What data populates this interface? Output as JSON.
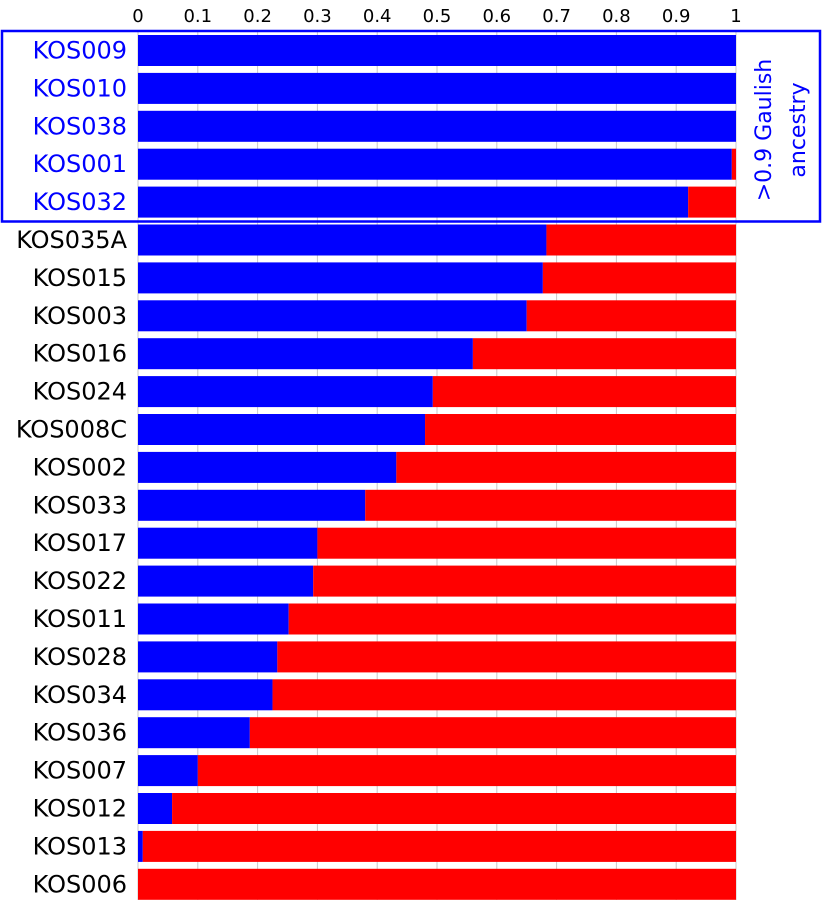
{
  "chart_data": {
    "type": "bar",
    "orientation": "horizontal",
    "stacked": true,
    "xlim": [
      0,
      1
    ],
    "x_ticks": [
      "0",
      "0.1",
      "0.2",
      "0.3",
      "0.4",
      "0.5",
      "0.6",
      "0.7",
      "0.8",
      "0.9",
      "1"
    ],
    "x_axis_position": "top",
    "grid": true,
    "categories": [
      "KOS009",
      "KOS010",
      "KOS038",
      "KOS001",
      "KOS032",
      "KOS035A",
      "KOS015",
      "KOS003",
      "KOS016",
      "KOS024",
      "KOS008C",
      "KOS002",
      "KOS033",
      "KOS017",
      "KOS022",
      "KOS011",
      "KOS028",
      "KOS034",
      "KOS036",
      "KOS007",
      "KOS012",
      "KOS013",
      "KOS006"
    ],
    "series": [
      {
        "values": [
          1.0,
          1.0,
          1.0,
          0.993,
          0.92,
          0.683,
          0.677,
          0.65,
          0.56,
          0.493,
          0.48,
          0.432,
          0.38,
          0.3,
          0.293,
          0.252,
          0.233,
          0.225,
          0.187,
          0.1,
          0.057,
          0.008,
          0.0
        ]
      },
      {
        "values": [
          0.0,
          0.0,
          0.0,
          0.007,
          0.08,
          0.317,
          0.323,
          0.35,
          0.44,
          0.507,
          0.52,
          0.568,
          0.62,
          0.7,
          0.707,
          0.748,
          0.767,
          0.775,
          0.813,
          0.9,
          0.943,
          0.992,
          1.0
        ]
      }
    ],
    "highlight": {
      "categories": [
        "KOS009",
        "KOS010",
        "KOS038",
        "KOS001",
        "KOS032"
      ],
      "annotation_line1": ">0.9 Gaulish",
      "annotation_line2": "ancestry"
    }
  },
  "colors": {
    "series_1": "#0000ff",
    "series_2": "#ff0000",
    "highlight": "#0000ff",
    "label": "#000000",
    "grid": "#c8c8c8"
  }
}
